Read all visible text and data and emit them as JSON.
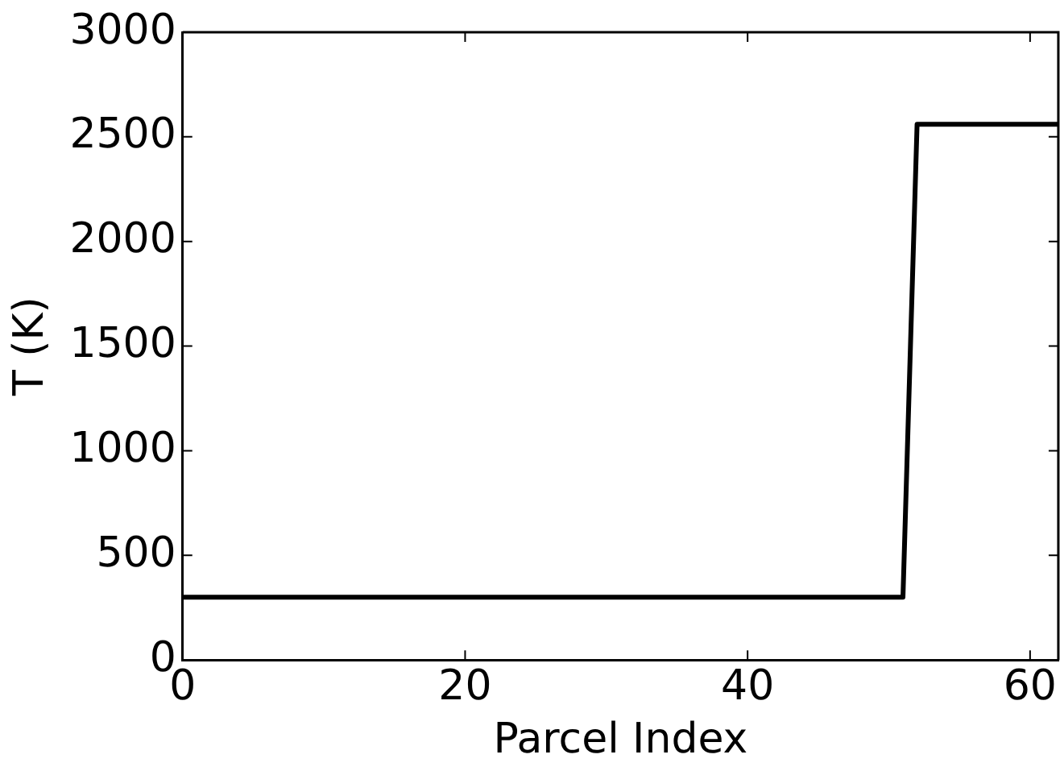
{
  "chart_data": {
    "type": "line",
    "xlabel": "Parcel Index",
    "ylabel": "T (K)",
    "x": [
      0,
      51,
      52,
      62
    ],
    "series": [
      {
        "color": "#000000",
        "values": [
          300,
          300,
          2560,
          2560
        ]
      }
    ],
    "xlim": [
      0,
      62
    ],
    "xticks": [
      0,
      20,
      40,
      60
    ],
    "ylim": [
      0,
      3000
    ],
    "yticks": [
      0,
      500,
      1000,
      1500,
      2000,
      2500,
      3000
    ],
    "grid": false,
    "legend": false,
    "marker": "none",
    "line_style": "solid"
  }
}
